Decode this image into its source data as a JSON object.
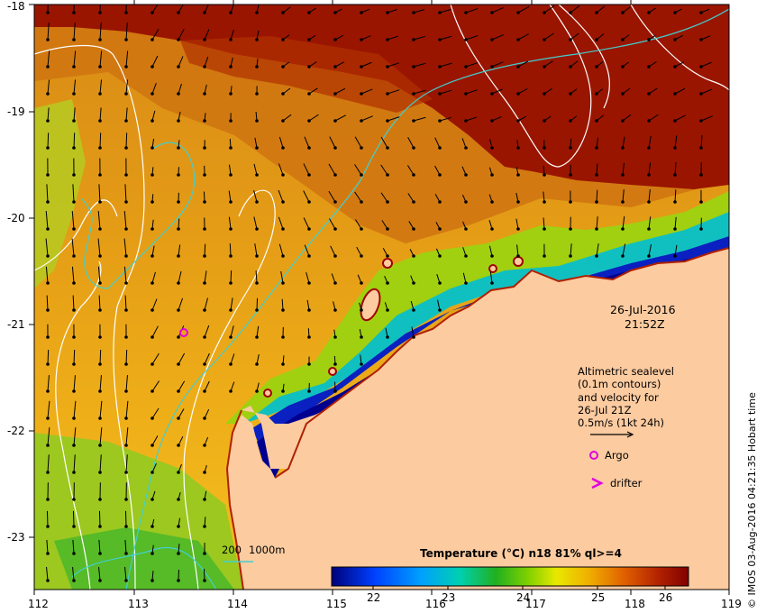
{
  "map": {
    "x_ticks": [
      "112",
      "113",
      "114",
      "115",
      "116",
      "117",
      "118",
      "119"
    ],
    "y_ticks": [
      "-18",
      "-19",
      "-20",
      "-21",
      "-22",
      "-23"
    ],
    "date_label": "26-Jul-2016",
    "time_label": "21:52Z",
    "legend_lines": [
      "Altimetric sealevel",
      "(0.1m contours)",
      "and velocity for",
      "26-Jul 21Z",
      "0.5m/s (1kt 24h)"
    ],
    "argo_label": "Argo",
    "drifter_label": "drifter",
    "depth_label_200": "200",
    "depth_label_1000": "1000m",
    "colorbar_title": "Temperature (°C) n18 81% ql>=4",
    "colorbar_ticks": [
      "22",
      "23",
      "24",
      "25",
      "26"
    ],
    "copyright": "© IMOS 03-Aug-2016 04:21:35 Hobart time"
  },
  "colors": {
    "land": "#fccba0",
    "argo": "#e000e0",
    "bathy": "#40d0d0"
  }
}
